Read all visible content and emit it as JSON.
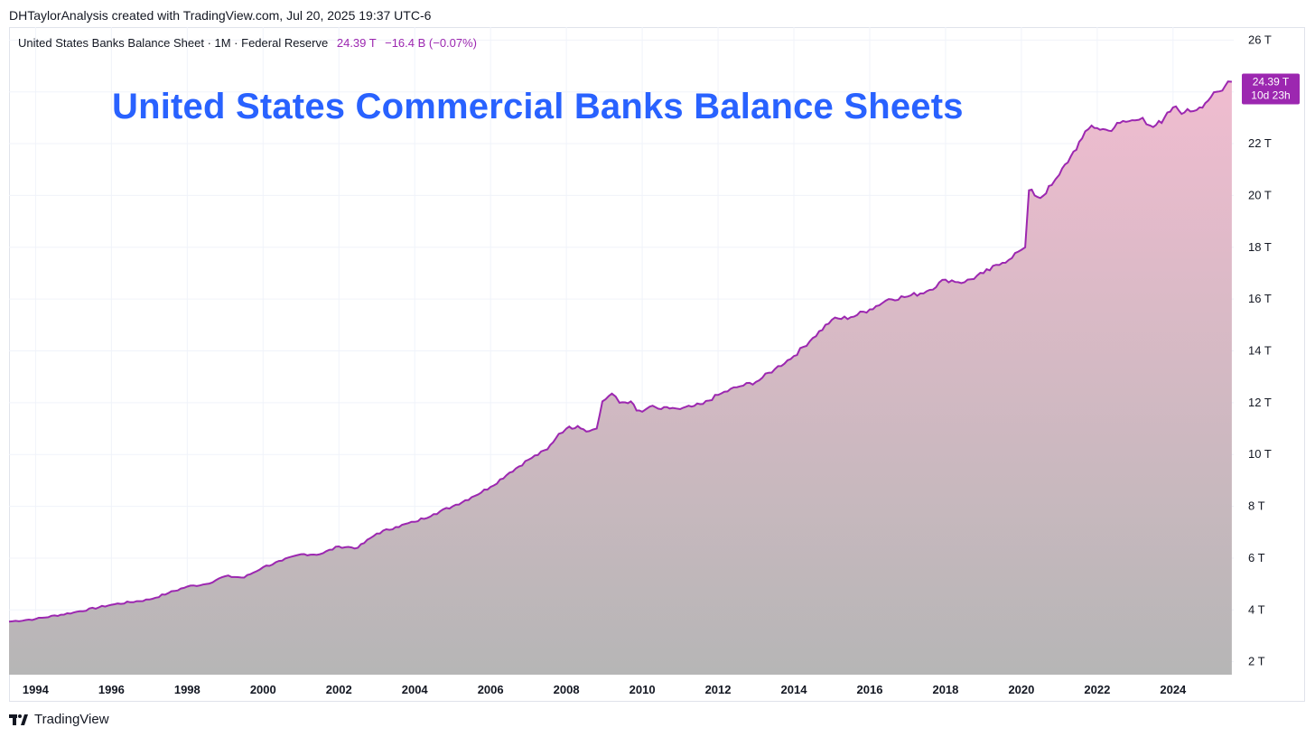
{
  "header": {
    "attribution": "DHTaylorAnalysis created with TradingView.com, Jul 20, 2025 19:37 UTC-6"
  },
  "legend": {
    "symbol": "United States Banks Balance Sheet · 1M · Federal Reserve",
    "last_value": "24.39 T",
    "change": "−16.4 B (−0.07%)"
  },
  "overlay_title": "United States Commercial Banks Balance Sheets",
  "price_badge": {
    "value": "24.39 T",
    "countdown": "10d 23h"
  },
  "footer": {
    "brand": "TradingView"
  },
  "colors": {
    "line": "#9c27b0",
    "fill_top": "#f0bcd0",
    "fill_bottom": "#b6b6b6",
    "title": "#2962ff",
    "grid": "#f0f3fa"
  },
  "chart_data": {
    "type": "area",
    "title": "United States Commercial Banks Balance Sheets",
    "xlabel": "",
    "ylabel": "",
    "x_ticks": [
      "1994",
      "1996",
      "1998",
      "2000",
      "2002",
      "2004",
      "2006",
      "2008",
      "2010",
      "2012",
      "2014",
      "2016",
      "2018",
      "2020",
      "2022",
      "2024"
    ],
    "y_ticks": [
      "2 T",
      "4 T",
      "6 T",
      "8 T",
      "10 T",
      "12 T",
      "14 T",
      "16 T",
      "18 T",
      "20 T",
      "22 T",
      "24 T",
      "26 T"
    ],
    "ylim": [
      1.5,
      26.5
    ],
    "xlim": [
      1993.3,
      2025.6
    ],
    "grid": true,
    "series": [
      {
        "name": "United States Banks Balance Sheet",
        "unit": "trillion USD",
        "points": [
          [
            1993.3,
            3.55
          ],
          [
            1994.0,
            3.65
          ],
          [
            1995.0,
            3.9
          ],
          [
            1996.0,
            4.2
          ],
          [
            1997.0,
            4.4
          ],
          [
            1997.5,
            4.65
          ],
          [
            1998.0,
            4.9
          ],
          [
            1998.5,
            5.0
          ],
          [
            1999.0,
            5.3
          ],
          [
            1999.5,
            5.25
          ],
          [
            2000.0,
            5.65
          ],
          [
            2000.5,
            5.9
          ],
          [
            2001.0,
            6.15
          ],
          [
            2001.5,
            6.15
          ],
          [
            2002.0,
            6.45
          ],
          [
            2002.5,
            6.4
          ],
          [
            2003.0,
            6.95
          ],
          [
            2003.5,
            7.2
          ],
          [
            2004.0,
            7.4
          ],
          [
            2004.5,
            7.7
          ],
          [
            2005.0,
            8.0
          ],
          [
            2005.5,
            8.35
          ],
          [
            2006.0,
            8.75
          ],
          [
            2006.5,
            9.3
          ],
          [
            2007.0,
            9.8
          ],
          [
            2007.5,
            10.2
          ],
          [
            2007.8,
            10.8
          ],
          [
            2008.0,
            11.0
          ],
          [
            2008.3,
            11.1
          ],
          [
            2008.6,
            10.9
          ],
          [
            2008.8,
            11.0
          ],
          [
            2008.95,
            12.05
          ],
          [
            2009.2,
            12.35
          ],
          [
            2009.4,
            12.0
          ],
          [
            2009.7,
            12.05
          ],
          [
            2009.85,
            11.7
          ],
          [
            2010.0,
            11.65
          ],
          [
            2010.2,
            11.85
          ],
          [
            2010.5,
            11.75
          ],
          [
            2010.8,
            11.8
          ],
          [
            2011.0,
            11.75
          ],
          [
            2011.3,
            11.85
          ],
          [
            2011.6,
            11.95
          ],
          [
            2012.0,
            12.3
          ],
          [
            2012.5,
            12.6
          ],
          [
            2013.0,
            12.8
          ],
          [
            2013.5,
            13.3
          ],
          [
            2014.0,
            13.8
          ],
          [
            2014.5,
            14.5
          ],
          [
            2015.0,
            15.2
          ],
          [
            2015.5,
            15.3
          ],
          [
            2016.0,
            15.6
          ],
          [
            2016.5,
            16.0
          ],
          [
            2017.0,
            16.1
          ],
          [
            2017.5,
            16.3
          ],
          [
            2018.0,
            16.75
          ],
          [
            2018.5,
            16.65
          ],
          [
            2019.0,
            17.0
          ],
          [
            2019.5,
            17.4
          ],
          [
            2020.0,
            17.9
          ],
          [
            2020.1,
            18.0
          ],
          [
            2020.2,
            20.2
          ],
          [
            2020.5,
            19.9
          ],
          [
            2020.8,
            20.4
          ],
          [
            2021.0,
            20.8
          ],
          [
            2021.3,
            21.5
          ],
          [
            2021.6,
            22.2
          ],
          [
            2021.85,
            22.7
          ],
          [
            2022.0,
            22.6
          ],
          [
            2022.3,
            22.5
          ],
          [
            2022.6,
            22.8
          ],
          [
            2023.0,
            22.9
          ],
          [
            2023.2,
            23.0
          ],
          [
            2023.4,
            22.7
          ],
          [
            2023.7,
            22.8
          ],
          [
            2024.0,
            23.4
          ],
          [
            2024.3,
            23.2
          ],
          [
            2024.7,
            23.4
          ],
          [
            2025.0,
            23.8
          ],
          [
            2025.3,
            24.05
          ],
          [
            2025.45,
            24.4
          ],
          [
            2025.55,
            24.39
          ]
        ]
      }
    ]
  }
}
